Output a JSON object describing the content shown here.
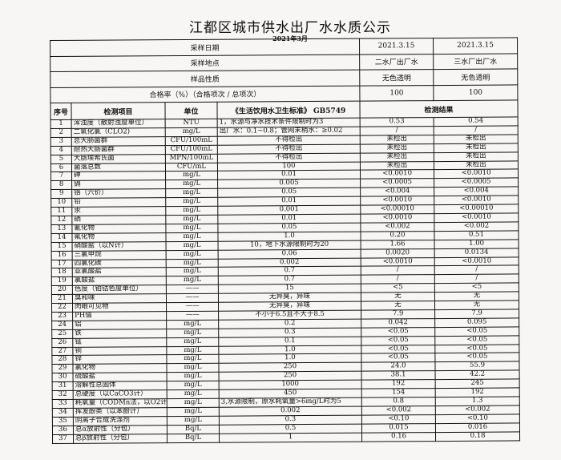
{
  "title": "江都区城市供水出厂水水质公示",
  "subtitle": "2021年3月",
  "meta": [
    {
      "label": "采样日期",
      "v1": "2021.3.15",
      "v2": "2021.3.15"
    },
    {
      "label": "采样地点",
      "v1": "二水厂出厂水",
      "v2": "三水厂出厂水"
    },
    {
      "label": "样品性质",
      "v1": "无色透明",
      "v2": "无色透明"
    },
    {
      "label": "合格率（%）（合格项次 / 总项次）",
      "v1": "100",
      "v2": "100"
    }
  ],
  "headers": {
    "no": "序号",
    "item": "检测项目",
    "unit": "单位",
    "standard": "《生活饮用水卫生标准》 GB5749",
    "result": "检测结果"
  },
  "rows": [
    [
      "1",
      "浑浊度（散射浊度单位）",
      "NTU",
      "1，水源与净水技术条件限制时为3",
      "0.53",
      "0.54"
    ],
    [
      "2",
      "二氧化氯（CLO2)",
      "mg/L",
      "出厂水：0.1~0.8；管网末梢水：≥0.02",
      "/",
      "/"
    ],
    [
      "3",
      "总大肠菌群",
      "CFU/100mL",
      "不得检出",
      "未检出",
      "未检出"
    ],
    [
      "4",
      "耐热大肠菌群",
      "CFU/100mL",
      "不得检出",
      "未检出",
      "未检出"
    ],
    [
      "5",
      "大肠埃希氏菌",
      "MPN/100mL",
      "不得检出",
      "未检出",
      "未检出"
    ],
    [
      "6",
      "菌落总数",
      "CFU/mL",
      "100",
      "未检出",
      "未检出"
    ],
    [
      "7",
      "砷",
      "mg/L",
      "0.01",
      "<0.0010",
      "<0.0010"
    ],
    [
      "8",
      "镉",
      "mg/L",
      "0.005",
      "<0.0005",
      "<0.0005"
    ],
    [
      "9",
      "铬（六价）",
      "mg/L",
      "0.05",
      "<0.004",
      "<0.004"
    ],
    [
      "10",
      "铅",
      "mg/L",
      "0.01",
      "<0.0010",
      "<0.0010"
    ],
    [
      "11",
      "汞",
      "mg/L",
      "0.001",
      "<0.00010",
      "<0.00010"
    ],
    [
      "12",
      "硒",
      "mg/L",
      "0.01",
      "<0.0010",
      "<0.0010"
    ],
    [
      "13",
      "氰化物",
      "mg/L",
      "0.05",
      "<0.002",
      "<0.002"
    ],
    [
      "14",
      "氟化物",
      "mg/L",
      "1.0",
      "0.20",
      "0.51"
    ],
    [
      "15",
      "硝酸盐（以N计）",
      "mg/L",
      "10，地下水源限制时为20",
      "1.66",
      "1.00"
    ],
    [
      "16",
      "三氯甲烷",
      "mg/L",
      "0.06",
      "0.0020",
      "0.0134"
    ],
    [
      "17",
      "四氯化碳",
      "mg/L",
      "0.002",
      "<0.0010",
      "<0.0010"
    ],
    [
      "18",
      "亚氯酸盐",
      "mg/L",
      "0.7",
      "/",
      "/"
    ],
    [
      "19",
      "氯酸盐",
      "mg/L",
      "0.7",
      "/",
      "/"
    ],
    [
      "20",
      "色度（铂钴色度单位）",
      "——",
      "15",
      "<5",
      "<5"
    ],
    [
      "21",
      "臭和味",
      "——",
      "无异臭，异味",
      "无",
      "无"
    ],
    [
      "22",
      "肉眼可见物",
      "——",
      "无异臭，异味",
      "无",
      "无"
    ],
    [
      "23",
      "PH值",
      "——",
      "不小于6.5且不大于8.5",
      "7.9",
      "7.9"
    ],
    [
      "24",
      "铝",
      "mg/L",
      "0.2",
      "0.042",
      "0.095"
    ],
    [
      "25",
      "铁",
      "mg/L",
      "0.3",
      "<0.05",
      "<0.05"
    ],
    [
      "26",
      "锰",
      "mg/L",
      "0.1",
      "<0.05",
      "<0.05"
    ],
    [
      "27",
      "铜",
      "mg/L",
      "1.0",
      "<0.05",
      "<0.05"
    ],
    [
      "28",
      "锌",
      "mg/L",
      "1.0",
      "<0.05",
      "<0.05"
    ],
    [
      "29",
      "氯化物",
      "mg/L",
      "250",
      "24.0",
      "55.9"
    ],
    [
      "30",
      "硫酸盐",
      "mg/L",
      "250",
      "38.1",
      "42.2"
    ],
    [
      "31",
      "溶解性总固体",
      "mg/L",
      "1000",
      "192",
      "245"
    ],
    [
      "32",
      "总硬度（以CaCO3计）",
      "mg/L",
      "450",
      "154",
      "192"
    ],
    [
      "33",
      "耗氧量（CODMn法，以O2计）",
      "mg/L",
      "3,水源限制，原水耗氧量>6mg/L时为5",
      "0.8",
      "1.3"
    ],
    [
      "34",
      "挥发酚类（以苯酚计）",
      "mg/L",
      "0.002",
      "<0.002",
      "<0.002"
    ],
    [
      "35",
      "阴离子合成洗涤剂",
      "mg/L",
      "0.3",
      "<0.10",
      "<0.10"
    ],
    [
      "36",
      "总α放射性（分包）",
      "Bq/L",
      "0.5",
      "0.015",
      "0.016"
    ],
    [
      "37",
      "总β放射性（分包）",
      "Bq/L",
      "1",
      "0.16",
      "0.18"
    ]
  ]
}
